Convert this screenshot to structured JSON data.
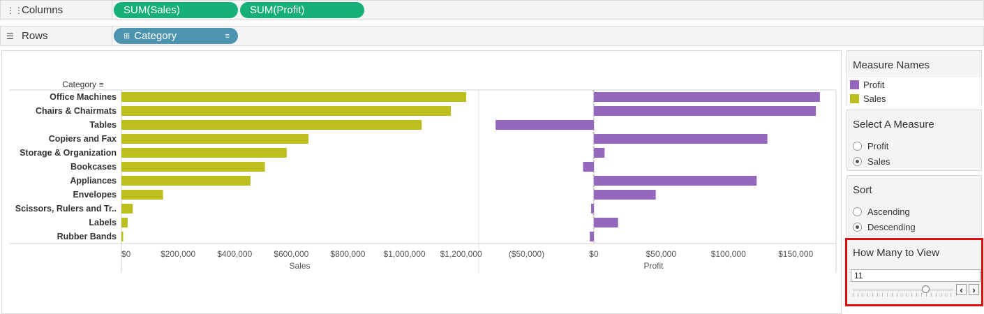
{
  "shelves": {
    "columns": {
      "label": "Columns",
      "icon": "columns-icon",
      "pills": [
        "SUM(Sales)",
        "SUM(Profit)"
      ]
    },
    "rows": {
      "label": "Rows",
      "icon": "rows-icon",
      "pills": [
        "Category"
      ]
    }
  },
  "colors": {
    "sales": "#bdbf21",
    "profit": "#9467bd",
    "columns_pill": "#14b078",
    "rows_pill": "#4d94b1",
    "highlight": "#dd0c0c"
  },
  "chart_data": {
    "type": "bar",
    "row_header": "Category",
    "categories": [
      "Office Machines",
      "Chairs & Chairmats",
      "Tables",
      "Copiers and Fax",
      "Storage & Organization",
      "Bookcases",
      "Appliances",
      "Envelopes",
      "Scissors, Rulers and Tr..",
      "Labels",
      "Rubber Bands"
    ],
    "series": [
      {
        "name": "Sales",
        "values": [
          1218000,
          1164000,
          1061000,
          661000,
          584000,
          507000,
          456000,
          147000,
          40000,
          22000,
          6000
        ]
      },
      {
        "name": "Profit",
        "values": [
          168000,
          165000,
          -73000,
          129000,
          8000,
          -8000,
          121000,
          46000,
          -2000,
          18000,
          -3000
        ]
      }
    ],
    "panes": [
      {
        "title": "Sales",
        "ticks": [
          "$0",
          "$200,000",
          "$400,000",
          "$600,000",
          "$800,000",
          "$1,000,000",
          "$1,200,000"
        ],
        "xlim": [
          0,
          1260000
        ]
      },
      {
        "title": "Profit",
        "ticks": [
          "($50,000)",
          "$0",
          "$50,000",
          "$100,000",
          "$150,000"
        ],
        "xlim": [
          -85000,
          180000
        ]
      }
    ]
  },
  "legend": {
    "title": "Measure Names",
    "items": [
      {
        "label": "Profit"
      },
      {
        "label": "Sales"
      }
    ]
  },
  "select_measure": {
    "title": "Select A Measure",
    "options": [
      "Profit",
      "Sales"
    ],
    "selected": "Sales"
  },
  "sort": {
    "title": "Sort",
    "options": [
      "Ascending",
      "Descending"
    ],
    "selected": "Descending"
  },
  "how_many": {
    "title": "How Many to View",
    "value": "11",
    "slider_fraction": 0.72
  }
}
